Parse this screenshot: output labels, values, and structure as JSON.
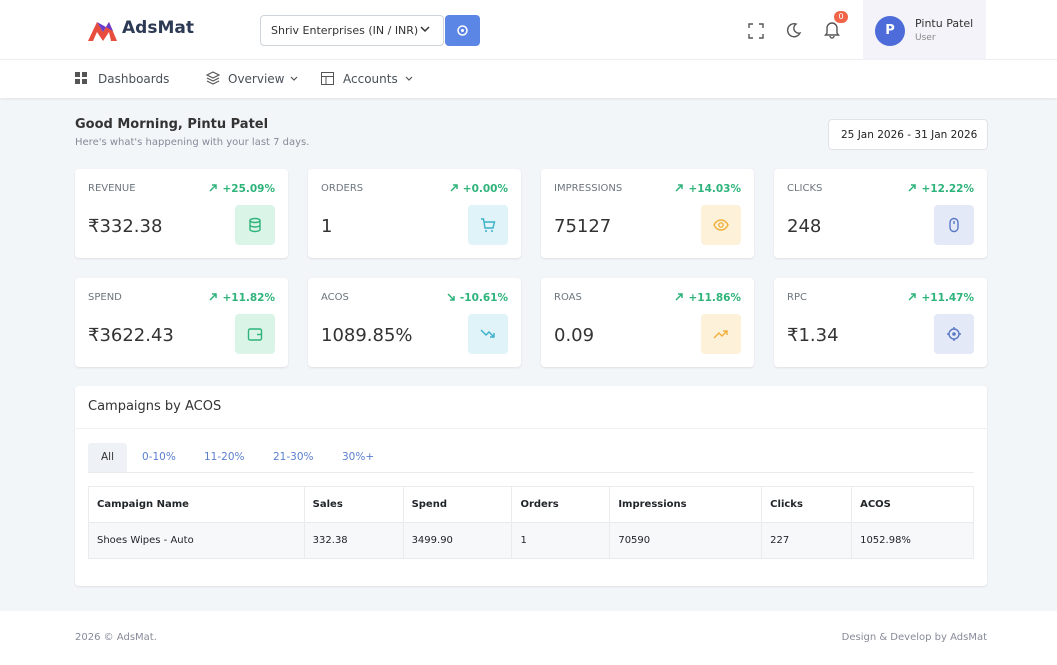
{
  "header": {
    "brand": "AdsMat",
    "account": "Shriv Enterprises (IN / INR)",
    "notifications": "0",
    "user_initial": "P",
    "user_name": "Pintu Patel",
    "user_role": "User"
  },
  "nav": [
    "Dashboards",
    "Overview",
    "Accounts"
  ],
  "greeting": {
    "title": "Good Morning, Pintu Patel",
    "subtitle": "Here's what's happening with your last 7 days.",
    "date_range": "25 Jan 2026 - 31 Jan 2026"
  },
  "cards": [
    {
      "label": "REVENUE",
      "change": "+25.09%",
      "value": "₹332.38"
    },
    {
      "label": "ORDERS",
      "change": "+0.00%",
      "value": "1"
    },
    {
      "label": "IMPRESSIONS",
      "change": "+14.03%",
      "value": "75127"
    },
    {
      "label": "CLICKS",
      "change": "+12.22%",
      "value": "248"
    },
    {
      "label": "SPEND",
      "change": "+11.82%",
      "value": "₹3622.43"
    },
    {
      "label": "ACOS",
      "change": "-10.61%",
      "value": "1089.85%"
    },
    {
      "label": "ROAS",
      "change": "+11.86%",
      "value": "0.09"
    },
    {
      "label": "RPC",
      "change": "+11.47%",
      "value": "₹1.34"
    }
  ],
  "campaigns": {
    "title": "Campaigns by ACOS",
    "tabs": [
      "All",
      "0-10%",
      "11-20%",
      "21-30%",
      "30%+"
    ],
    "columns": [
      "Campaign Name",
      "Sales",
      "Spend",
      "Orders",
      "Impressions",
      "Clicks",
      "ACOS"
    ],
    "rows": [
      [
        "Shoes Wipes - Auto",
        "332.38",
        "3499.90",
        "1",
        "70590",
        "227",
        "1052.98%"
      ]
    ]
  },
  "footer": {
    "left": "2026 © AdsMat.",
    "right": "Design & Develop by AdsMat"
  }
}
